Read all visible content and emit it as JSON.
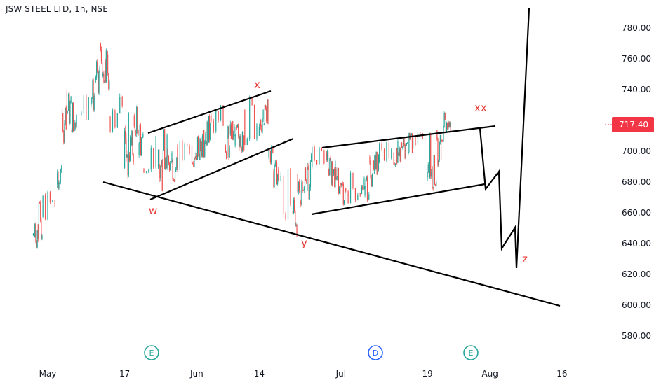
{
  "chart_data": {
    "type": "candlestick",
    "title": "JSW STEEL LTD, 1h, NSE",
    "last_price": "717.40",
    "ylim": [
      570,
      795
    ],
    "y_ticks": [
      "780.00",
      "760.00",
      "740.00",
      "720.00",
      "700.00",
      "680.00",
      "660.00",
      "640.00",
      "620.00",
      "600.00",
      "580.00"
    ],
    "x_ticks": [
      "May",
      "17",
      "Jun",
      "14",
      "Jul",
      "19",
      "Aug",
      "16"
    ],
    "x_tick_dates": [
      "2021-05-01",
      "2021-05-17",
      "2021-06-01",
      "2021-06-14",
      "2021-07-01",
      "2021-07-19",
      "2021-08-01",
      "2021-08-16"
    ],
    "series": [
      {
        "values": [
          [
            "2021-04-28",
            655,
            636
          ],
          [
            "2021-04-29",
            668,
            638
          ],
          [
            "2021-04-30",
            676,
            654
          ],
          [
            "2021-05-03",
            696,
            666
          ],
          [
            "2021-05-04",
            730,
            692
          ],
          [
            "2021-05-05",
            740,
            714
          ],
          [
            "2021-05-06",
            735,
            712
          ],
          [
            "2021-05-07",
            738,
            714
          ],
          [
            "2021-05-10",
            748,
            724
          ],
          [
            "2021-05-11",
            760,
            736
          ],
          [
            "2021-05-12",
            774,
            744
          ],
          [
            "2021-05-13",
            768,
            738
          ],
          [
            "2021-05-14",
            744,
            712
          ],
          [
            "2021-05-17",
            726,
            678
          ],
          [
            "2021-05-18",
            714,
            690
          ],
          [
            "2021-05-19",
            731,
            700
          ],
          [
            "2021-05-20",
            722,
            696
          ],
          [
            "2021-05-21",
            710,
            686
          ],
          [
            "2021-05-24",
            704,
            670
          ],
          [
            "2021-05-25",
            716,
            686
          ],
          [
            "2021-05-26",
            704,
            682
          ],
          [
            "2021-05-27",
            700,
            680
          ],
          [
            "2021-05-28",
            708,
            686
          ],
          [
            "2021-05-31",
            712,
            690
          ],
          [
            "2021-06-01",
            718,
            694
          ],
          [
            "2021-06-02",
            716,
            696
          ],
          [
            "2021-06-03",
            724,
            700
          ],
          [
            "2021-06-04",
            730,
            706
          ],
          [
            "2021-06-07",
            728,
            690
          ],
          [
            "2021-06-08",
            722,
            694
          ],
          [
            "2021-06-09",
            718,
            696
          ],
          [
            "2021-06-10",
            716,
            698
          ],
          [
            "2021-06-11",
            738,
            704
          ],
          [
            "2021-06-14",
            736,
            710
          ],
          [
            "2021-06-15",
            734,
            714
          ],
          [
            "2021-06-16",
            708,
            690
          ],
          [
            "2021-06-17",
            698,
            672
          ],
          [
            "2021-06-18",
            690,
            655
          ],
          [
            "2021-06-21",
            676,
            644
          ],
          [
            "2021-06-22",
            686,
            664
          ],
          [
            "2021-06-23",
            690,
            670
          ],
          [
            "2021-06-24",
            702,
            668
          ],
          [
            "2021-06-25",
            704,
            688
          ],
          [
            "2021-06-28",
            702,
            684
          ],
          [
            "2021-06-29",
            694,
            676
          ],
          [
            "2021-06-30",
            690,
            672
          ],
          [
            "2021-07-01",
            684,
            664
          ],
          [
            "2021-07-02",
            688,
            666
          ],
          [
            "2021-07-05",
            684,
            668
          ],
          [
            "2021-07-06",
            688,
            666
          ],
          [
            "2021-07-07",
            698,
            674
          ],
          [
            "2021-07-08",
            700,
            682
          ],
          [
            "2021-07-09",
            706,
            690
          ],
          [
            "2021-07-12",
            708,
            690
          ],
          [
            "2021-07-13",
            706,
            692
          ],
          [
            "2021-07-14",
            710,
            694
          ],
          [
            "2021-07-15",
            712,
            696
          ],
          [
            "2021-07-16",
            714,
            700
          ],
          [
            "2021-07-19",
            712,
            676
          ],
          [
            "2021-07-20",
            698,
            674
          ],
          [
            "2021-07-21",
            714,
            690
          ],
          [
            "2021-07-22",
            726,
            706
          ],
          [
            "2021-07-23",
            722,
            712
          ]
        ]
      }
    ],
    "annotations": [
      "w",
      "x",
      "y",
      "xx",
      "z"
    ],
    "marker_badges": [
      "E",
      "D",
      "E"
    ]
  }
}
